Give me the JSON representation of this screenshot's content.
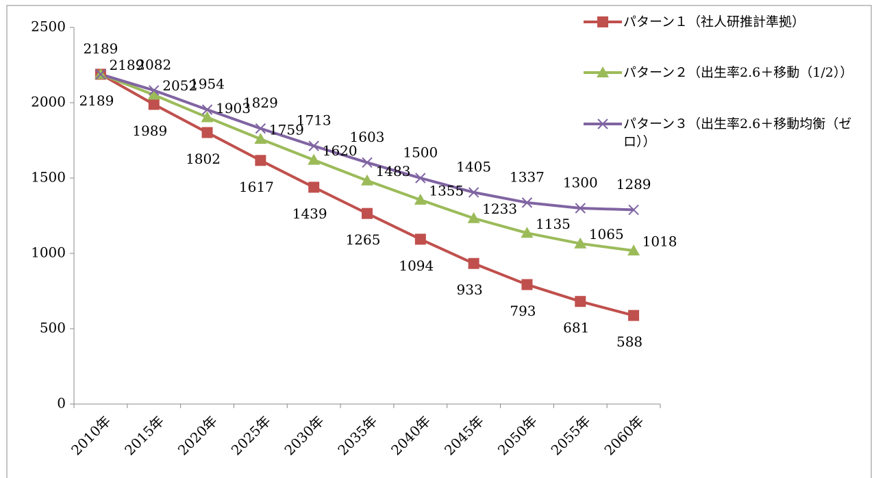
{
  "chart_data": {
    "type": "line",
    "categories": [
      "2010年",
      "2015年",
      "2020年",
      "2025年",
      "2030年",
      "2035年",
      "2040年",
      "2045年",
      "2050年",
      "2055年",
      "2060年"
    ],
    "series": [
      {
        "name": "パターン１（社人研推計準拠）",
        "color": "#c0504d",
        "marker": "square",
        "values": [
          2189,
          1989,
          1802,
          1617,
          1439,
          1265,
          1094,
          933,
          793,
          681,
          588
        ]
      },
      {
        "name": "パターン２（出生率2.6＋移動（1/2））",
        "color": "#9bbb59",
        "marker": "triangle",
        "values": [
          2189,
          2052,
          1903,
          1759,
          1620,
          1483,
          1355,
          1233,
          1135,
          1065,
          1018
        ]
      },
      {
        "name": "パターン３（出生率2.6＋移動均衡（ゼロ））",
        "color": "#8064a2",
        "marker": "x",
        "values": [
          2189,
          2082,
          1954,
          1829,
          1713,
          1603,
          1500,
          1405,
          1337,
          1300,
          1289
        ]
      }
    ],
    "ylim": [
      0,
      2500
    ],
    "yticks": [
      0,
      500,
      1000,
      1500,
      2000,
      2500
    ],
    "grid": false,
    "legend": "top-right"
  }
}
